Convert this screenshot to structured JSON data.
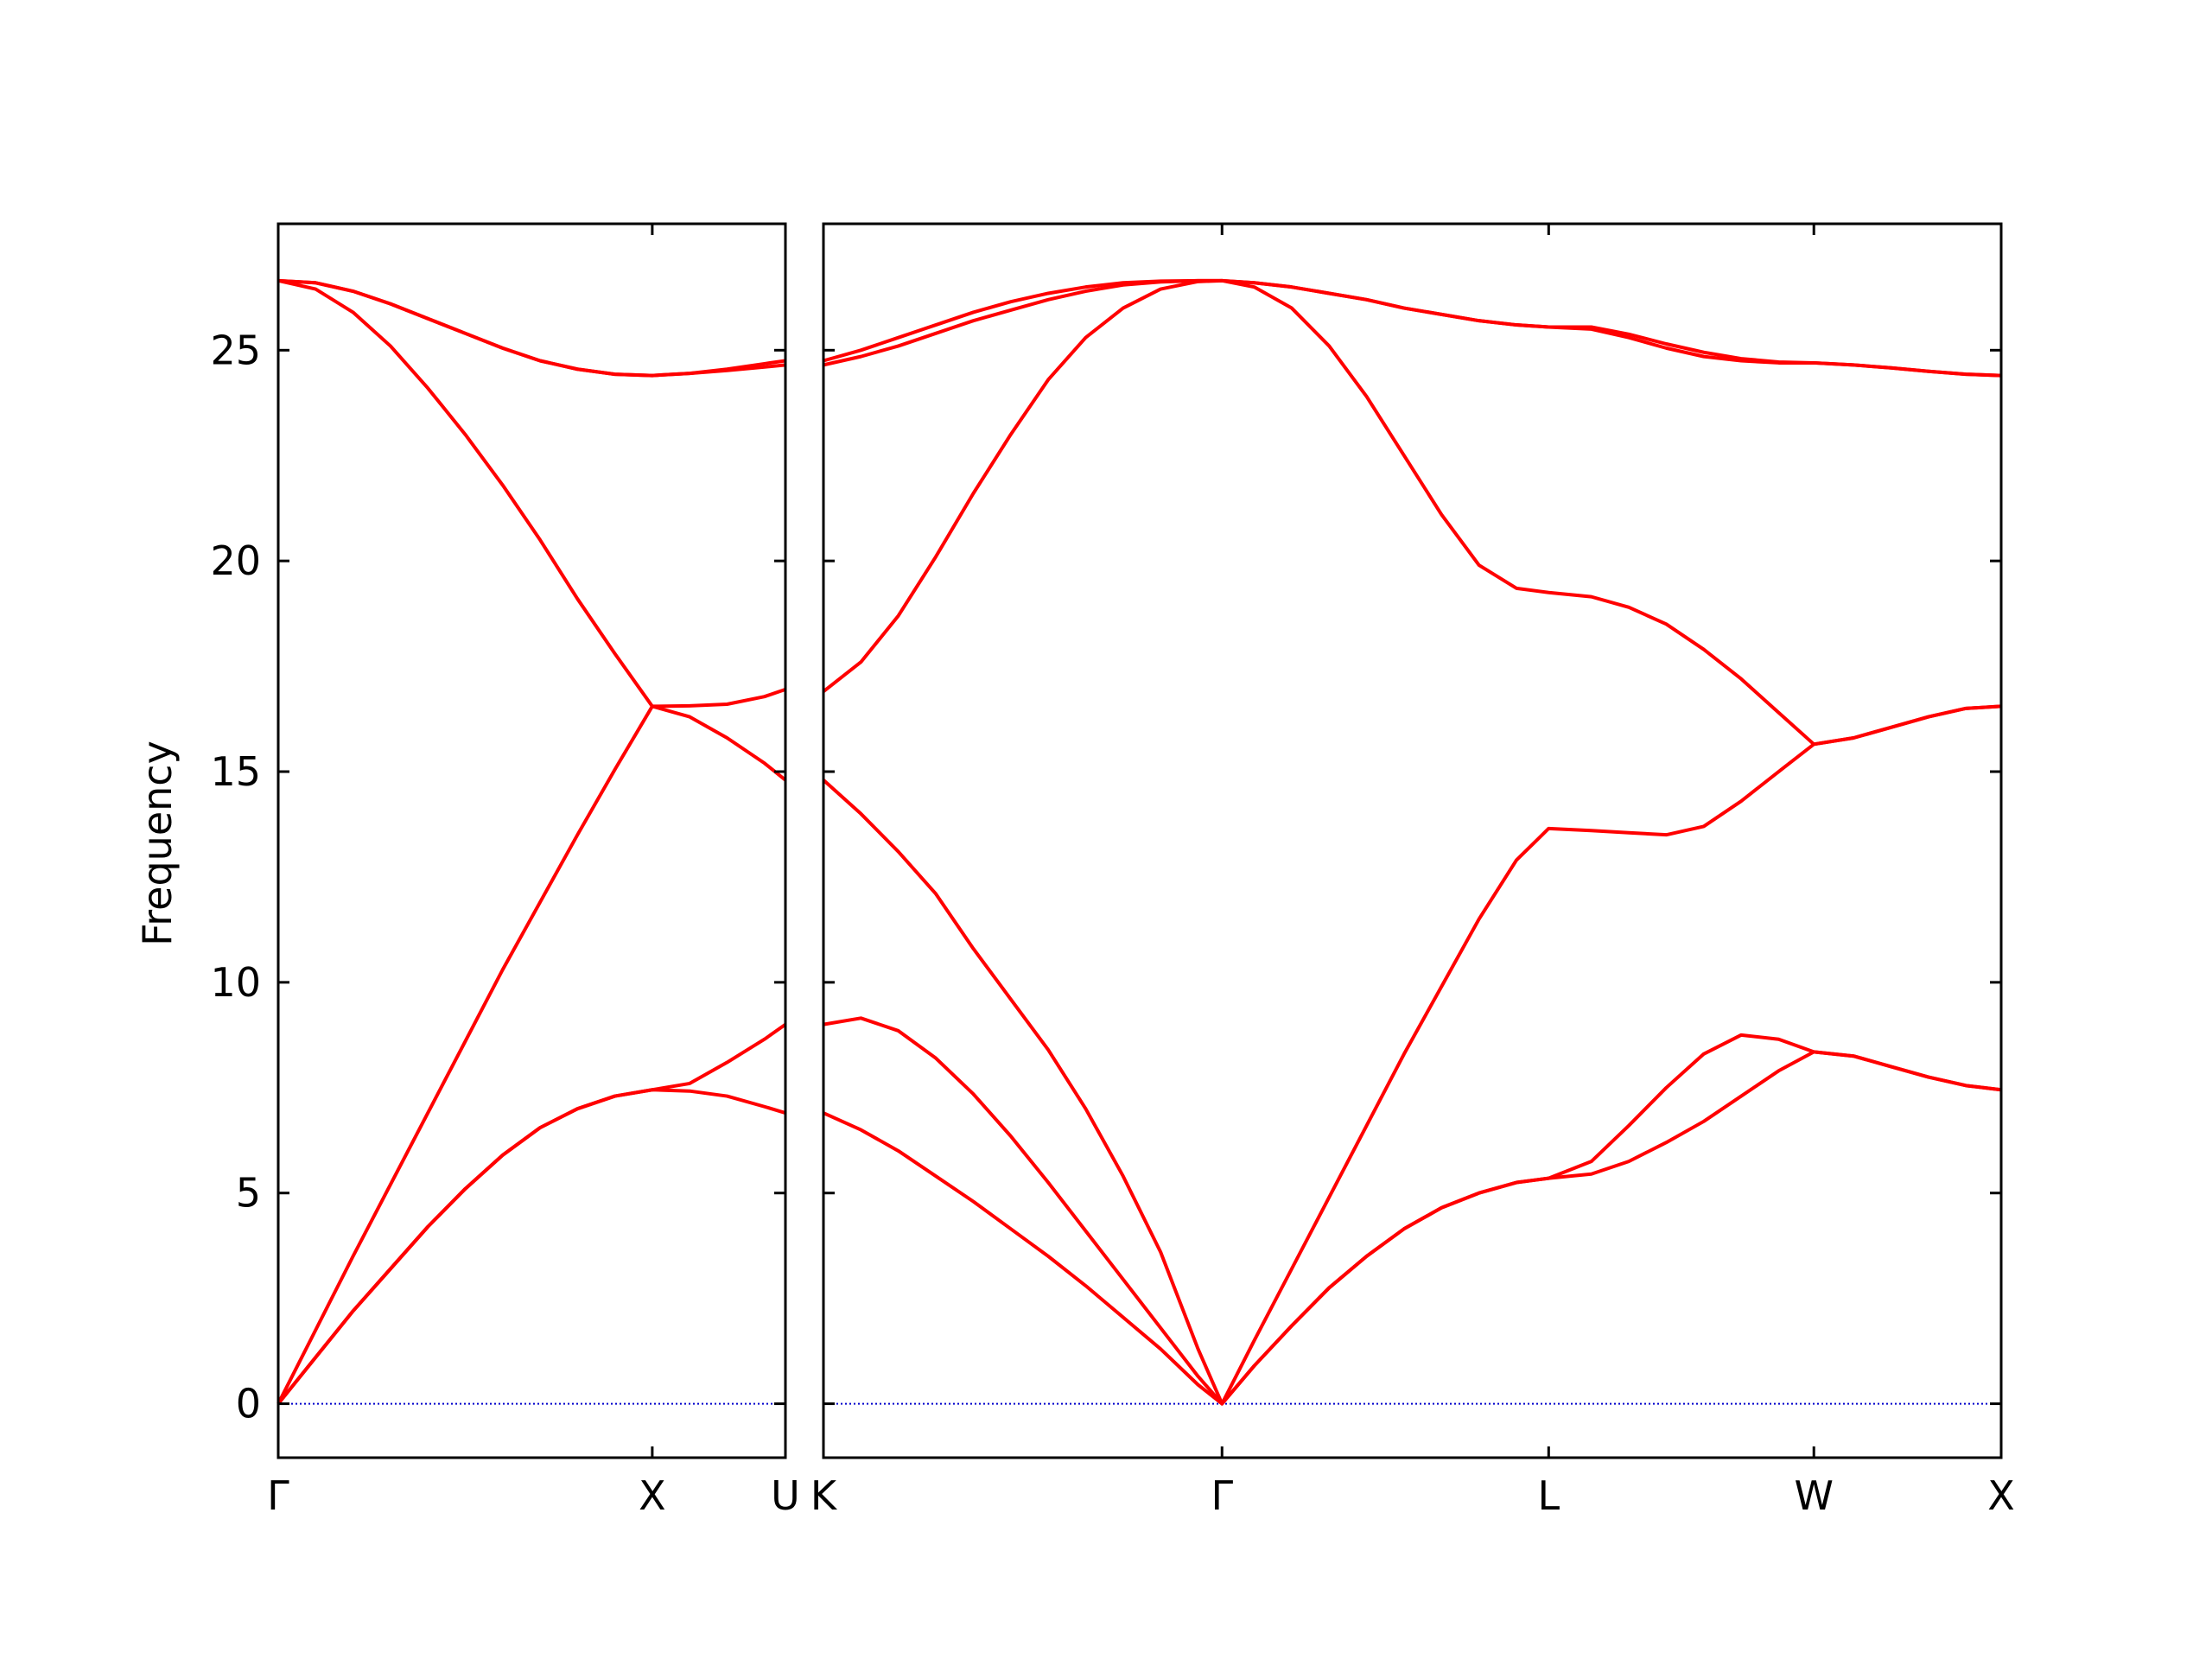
{
  "chart_data": [
    {
      "type": "line",
      "ylabel": "Frequency",
      "color": "#ff0000",
      "hline": 0,
      "hline_color": "#0000cc",
      "xlim": [
        0,
        1.356
      ],
      "ylim": [
        -1.28,
        28
      ],
      "xticks": [
        {
          "value": 0,
          "label": "Γ"
        },
        {
          "value": 1,
          "label": "X"
        },
        {
          "value": 1.356,
          "label": "U"
        }
      ],
      "yticks": [
        0,
        5,
        10,
        15,
        20,
        25
      ],
      "x": [
        0,
        0.1,
        0.2,
        0.3,
        0.4,
        0.5,
        0.6,
        0.7,
        0.8,
        0.9,
        1.0,
        1.1,
        1.2,
        1.3,
        1.356
      ],
      "series": [
        {
          "values": [
            0,
            1.1,
            2.2,
            3.2,
            4.2,
            5.1,
            5.9,
            6.55,
            7.0,
            7.3,
            7.45,
            7.42,
            7.3,
            7.05,
            6.9
          ]
        },
        {
          "values": [
            0,
            1.1,
            2.2,
            3.2,
            4.2,
            5.1,
            5.9,
            6.55,
            7.0,
            7.3,
            7.45,
            7.6,
            8.1,
            8.65,
            9.0
          ]
        },
        {
          "values": [
            0,
            1.75,
            3.5,
            5.2,
            6.9,
            8.6,
            10.3,
            11.9,
            13.5,
            15.05,
            16.55,
            16.3,
            15.8,
            15.2,
            14.8
          ]
        },
        {
          "values": [
            26.65,
            26.45,
            25.9,
            25.1,
            24.1,
            23.0,
            21.8,
            20.5,
            19.1,
            17.8,
            16.55,
            16.56,
            16.6,
            16.78,
            16.95
          ]
        },
        {
          "values": [
            26.65,
            26.6,
            26.4,
            26.1,
            25.75,
            25.4,
            25.05,
            24.75,
            24.55,
            24.43,
            24.4,
            24.45,
            24.52,
            24.6,
            24.65
          ]
        },
        {
          "values": [
            26.65,
            26.6,
            26.4,
            26.1,
            25.75,
            25.4,
            25.05,
            24.75,
            24.55,
            24.43,
            24.4,
            24.45,
            24.55,
            24.68,
            24.75
          ]
        }
      ]
    },
    {
      "type": "line",
      "color": "#ff0000",
      "hline": 0,
      "hline_color": "#0000cc",
      "xlim": [
        0,
        3.144
      ],
      "ylim": [
        -1.28,
        28
      ],
      "xticks": [
        {
          "value": 0,
          "label": "K"
        },
        {
          "value": 1.064,
          "label": "Γ"
        },
        {
          "value": 1.936,
          "label": "L"
        },
        {
          "value": 2.644,
          "label": "W"
        },
        {
          "value": 3.144,
          "label": "X"
        }
      ],
      "yticks": [
        0,
        5,
        10,
        15,
        20,
        25
      ],
      "x": [
        0,
        0.1,
        0.2,
        0.3,
        0.4,
        0.5,
        0.6,
        0.7,
        0.8,
        0.9,
        1.0,
        1.064,
        1.15,
        1.25,
        1.35,
        1.45,
        1.55,
        1.65,
        1.75,
        1.85,
        1.936,
        2.05,
        2.15,
        2.25,
        2.35,
        2.45,
        2.55,
        2.644,
        2.75,
        2.85,
        2.95,
        3.05,
        3.144
      ],
      "series": [
        {
          "values": [
            6.9,
            6.5,
            6.0,
            5.4,
            4.8,
            4.15,
            3.5,
            2.8,
            2.05,
            1.3,
            0.45,
            0,
            0.9,
            1.85,
            2.75,
            3.5,
            4.15,
            4.65,
            5.0,
            5.25,
            5.35,
            5.45,
            5.75,
            6.2,
            6.7,
            7.3,
            7.9,
            8.35,
            8.25,
            8.0,
            7.75,
            7.55,
            7.45
          ]
        },
        {
          "values": [
            9.0,
            9.15,
            8.85,
            8.2,
            7.35,
            6.35,
            5.25,
            4.1,
            2.95,
            1.8,
            0.65,
            0,
            0.9,
            1.85,
            2.75,
            3.5,
            4.15,
            4.65,
            5.0,
            5.25,
            5.35,
            5.75,
            6.6,
            7.5,
            8.3,
            8.75,
            8.65,
            8.35,
            8.25,
            8.0,
            7.75,
            7.55,
            7.45
          ]
        },
        {
          "values": [
            14.8,
            14.0,
            13.1,
            12.1,
            10.8,
            9.6,
            8.4,
            7.0,
            5.4,
            3.6,
            1.3,
            0,
            1.5,
            3.2,
            4.9,
            6.6,
            8.3,
            9.9,
            11.5,
            12.9,
            13.65,
            13.6,
            13.55,
            13.5,
            13.7,
            14.3,
            15.0,
            15.65,
            15.8,
            16.05,
            16.3,
            16.5,
            16.55
          ]
        },
        {
          "values": [
            16.9,
            17.6,
            18.7,
            20.1,
            21.6,
            23.0,
            24.3,
            25.3,
            26.0,
            26.45,
            26.63,
            26.65,
            26.5,
            26.0,
            25.1,
            23.9,
            22.5,
            21.1,
            19.9,
            19.35,
            19.25,
            19.15,
            18.9,
            18.5,
            17.9,
            17.2,
            16.4,
            15.65,
            15.8,
            16.05,
            16.3,
            16.5,
            16.55
          ]
        },
        {
          "values": [
            24.65,
            24.85,
            25.1,
            25.4,
            25.7,
            25.95,
            26.2,
            26.4,
            26.55,
            26.62,
            26.65,
            26.65,
            26.6,
            26.5,
            26.35,
            26.2,
            26.0,
            25.85,
            25.7,
            25.6,
            25.55,
            25.5,
            25.3,
            25.05,
            24.85,
            24.75,
            24.7,
            24.7,
            24.65,
            24.58,
            24.5,
            24.43,
            24.4
          ]
        },
        {
          "values": [
            24.75,
            25.0,
            25.3,
            25.6,
            25.9,
            26.15,
            26.35,
            26.5,
            26.6,
            26.64,
            26.65,
            26.65,
            26.6,
            26.5,
            26.35,
            26.2,
            26.0,
            25.85,
            25.7,
            25.6,
            25.55,
            25.55,
            25.38,
            25.15,
            24.95,
            24.8,
            24.72,
            24.7,
            24.65,
            24.58,
            24.5,
            24.43,
            24.4
          ]
        }
      ]
    }
  ]
}
